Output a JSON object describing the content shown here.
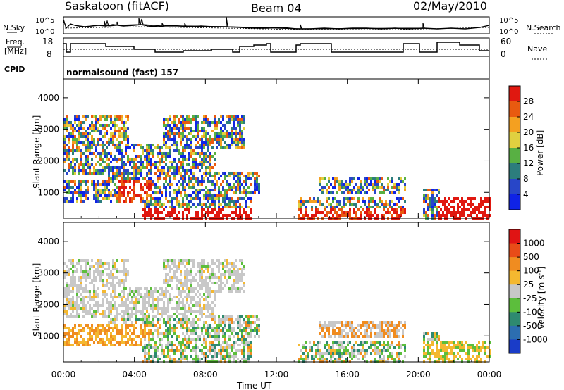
{
  "header": {
    "station": "Saskatoon (fitACF)",
    "beam": "Beam 04",
    "date": "02/May/2010"
  },
  "top_panels": {
    "nsky_label": "N.Sky",
    "nsearch_label": "N.Search",
    "nsky_ticks": [
      "10^5",
      "10^0"
    ],
    "nsearch_ticks": [
      "10^5",
      "10^0"
    ],
    "freq_label_line1": "Freq.",
    "freq_label_line2": "[MHz]",
    "freq_ticks": [
      "18",
      "8"
    ],
    "nave_label": "Nave",
    "nave_ticks": [
      "60",
      "0"
    ],
    "cpid_label": "CPID",
    "cpid_value": "normalsound (fast) 157"
  },
  "chart_data": [
    {
      "type": "heatmap",
      "title": "",
      "ylabel": "Slant Range [km]",
      "xlabel": "Time UT",
      "x_ticks": [
        "00:00",
        "04:00",
        "08:00",
        "12:00",
        "16:00",
        "20:00",
        "00:00"
      ],
      "y_ticks": [
        "1000",
        "2000",
        "3000",
        "4000"
      ],
      "xlim_hours": [
        0,
        24
      ],
      "ylim_km": [
        180,
        4600
      ],
      "colorbar": {
        "label": "Power [dB]",
        "ticks": [
          "4",
          "8",
          "12",
          "16",
          "20",
          "24",
          "28"
        ],
        "colors": [
          "#0f23e6",
          "#2846c8",
          "#2c7d7d",
          "#58b043",
          "#e0d040",
          "#f4a020",
          "#e85a10",
          "#e01810"
        ]
      }
    },
    {
      "type": "heatmap",
      "title": "",
      "ylabel": "Slant Range [km]",
      "xlabel": "Time UT",
      "x_ticks": [
        "00:00",
        "04:00",
        "08:00",
        "12:00",
        "16:00",
        "20:00",
        "00:00"
      ],
      "y_ticks": [
        "1000",
        "2000",
        "3000",
        "4000"
      ],
      "xlim_hours": [
        0,
        24
      ],
      "ylim_km": [
        180,
        4600
      ],
      "colorbar": {
        "label": "Velocity [m s-1]",
        "label_main": "Velocity  [m s",
        "label_sup": "-1",
        "label_end": "]",
        "ticks": [
          "1000",
          "500",
          "100",
          "25",
          "-25",
          "-100",
          "-500",
          "-1000"
        ],
        "colors": [
          "#1a3cc8",
          "#2c6eb0",
          "#2e8a70",
          "#5cbe3c",
          "#c8c8c8",
          "#f4b830",
          "#f08c20",
          "#e84c18",
          "#e01414"
        ]
      }
    }
  ]
}
